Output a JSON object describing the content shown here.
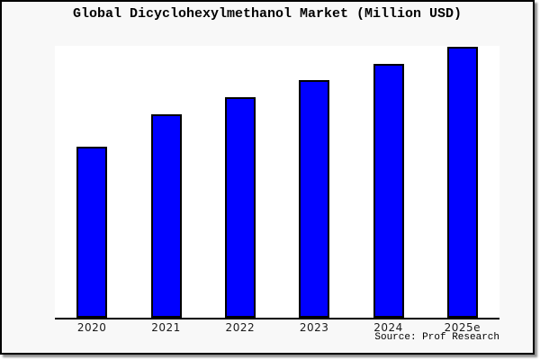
{
  "chart_data": {
    "type": "bar",
    "title": "Global Dicyclohexylmethanol Market (Million USD)",
    "categories": [
      "2020",
      "2021",
      "2022",
      "2023",
      "2024",
      "2025e"
    ],
    "values": [
      62.9,
      74.8,
      81.1,
      87.4,
      93.4,
      99.7
    ],
    "values_note": "relative units estimated from bar heights; no y-axis labels shown",
    "ylim": [
      0,
      100
    ],
    "xlabel": "",
    "ylabel": "",
    "grid": false,
    "legend": false,
    "bar_color": "#0000ff",
    "bar_edge_color": "#000000",
    "plot_bg_color": "#ffffff",
    "figure_bg_color": "#f8f8f8",
    "source": "Source: Prof Research"
  }
}
